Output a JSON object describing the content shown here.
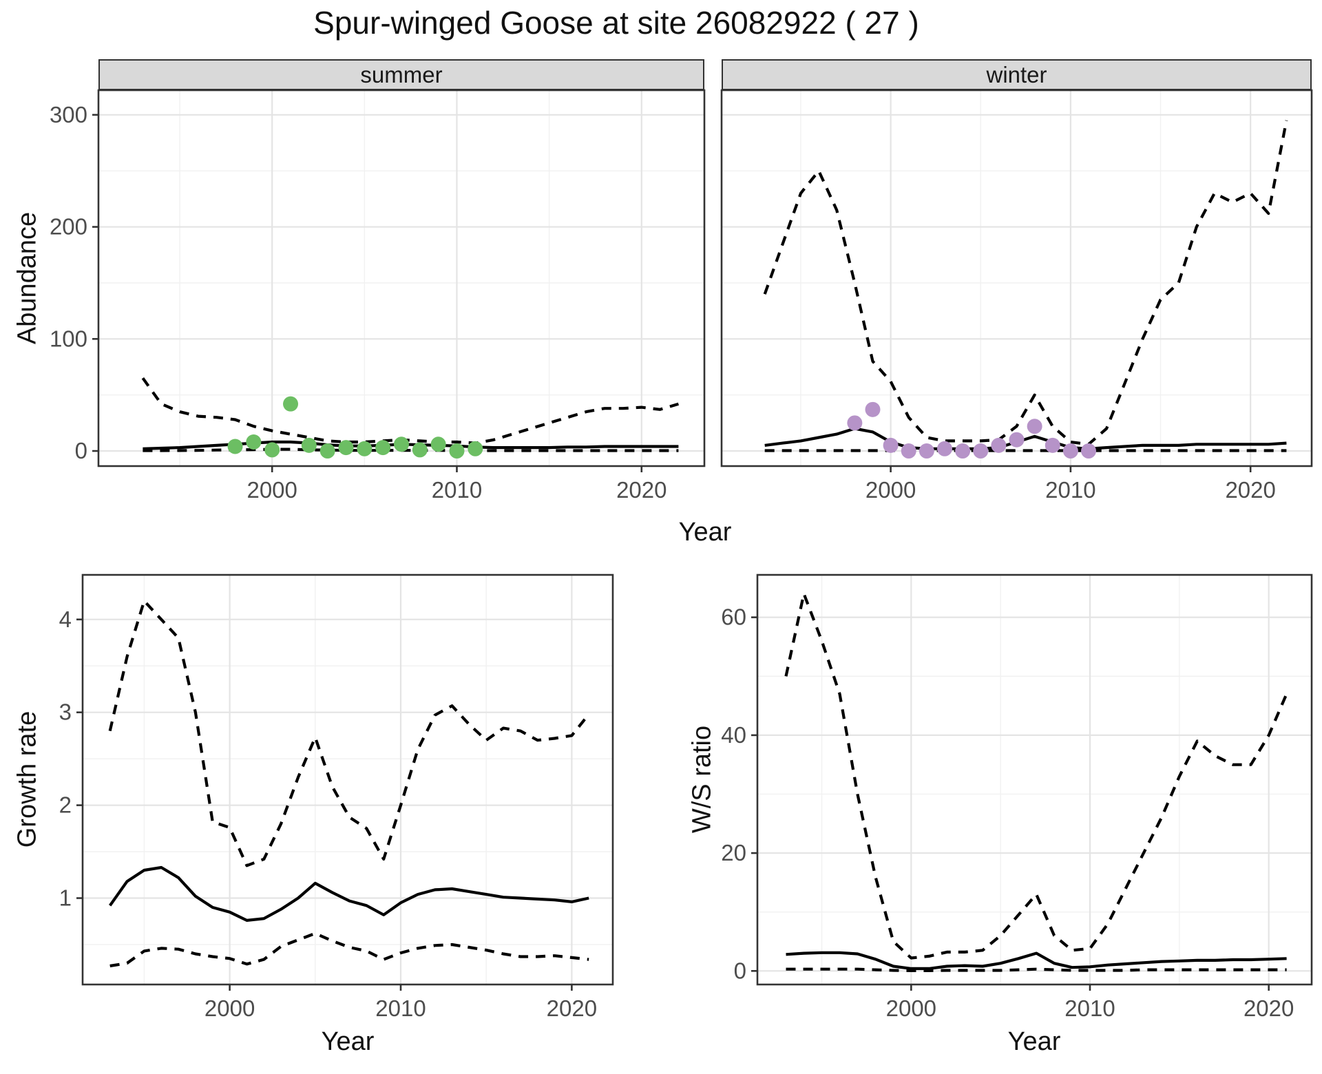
{
  "title": "Spur-winged Goose at site 26082922 ( 27 )",
  "facets": {
    "summer": "summer",
    "winter": "winter"
  },
  "axis_titles": {
    "y_top": "Abundance",
    "x_top": "Year",
    "y_growth": "Growth rate",
    "x_growth": "Year",
    "y_ws": "W/S ratio",
    "x_ws": "Year"
  },
  "colors": {
    "summer_points": "#6cbe63",
    "winter_points": "#b693c8",
    "line": "#000000",
    "grid_major": "#e4e4e4",
    "grid_minor": "#f1f1f1",
    "panel_border": "#333333",
    "strip_bg": "#d9d9d9",
    "tick_text": "#4d4d4d"
  },
  "chart_data": [
    {
      "type": "line",
      "facet": "summer",
      "title": "Abundance - summer",
      "xlabel": "Year",
      "ylabel": "Abundance",
      "x": [
        1993,
        1994,
        1995,
        1996,
        1997,
        1998,
        1999,
        2000,
        2001,
        2002,
        2003,
        2004,
        2005,
        2006,
        2007,
        2008,
        2009,
        2010,
        2011,
        2012,
        2013,
        2014,
        2015,
        2016,
        2017,
        2018,
        2019,
        2020,
        2021,
        2022
      ],
      "series": [
        {
          "name": "upper_ci",
          "style": "dashed",
          "values": [
            65,
            42,
            35,
            31,
            30,
            28,
            22,
            18,
            15,
            12,
            9,
            8,
            8,
            9,
            10,
            9,
            8,
            8,
            7,
            10,
            15,
            20,
            25,
            30,
            35,
            38,
            38,
            39,
            37,
            42
          ]
        },
        {
          "name": "median",
          "style": "solid",
          "values": [
            2,
            2.5,
            3,
            4,
            5,
            6,
            7,
            8,
            8,
            7,
            5.5,
            4.5,
            4.5,
            5,
            6,
            5.5,
            5,
            4.5,
            3.5,
            3,
            3,
            3,
            3,
            3.5,
            3.5,
            4,
            4,
            4,
            4,
            4
          ]
        },
        {
          "name": "lower_ci",
          "style": "dashed",
          "values": [
            0.3,
            0.3,
            0.4,
            0.5,
            0.8,
            1,
            1.2,
            1.5,
            1.5,
            1,
            0.8,
            0.5,
            0.5,
            0.5,
            0.6,
            0.5,
            0.5,
            0.4,
            0.3,
            0.3,
            0.3,
            0.3,
            0.3,
            0.3,
            0.3,
            0.3,
            0.3,
            0.3,
            0.3,
            0.3
          ]
        }
      ],
      "points": {
        "years": [
          1998,
          1999,
          2000,
          2001,
          2002,
          2003,
          2004,
          2005,
          2006,
          2007,
          2008,
          2009,
          2010,
          2011
        ],
        "values": [
          4,
          8,
          1,
          42,
          5,
          0,
          3,
          2,
          3,
          6,
          1,
          6,
          0,
          2
        ],
        "color": "#6cbe63"
      },
      "xticks": [
        2000,
        2010,
        2020
      ],
      "yticks": [
        0,
        100,
        200,
        300
      ],
      "xminor": [
        1995,
        2005,
        2015
      ],
      "yminor": [
        50,
        150,
        250
      ],
      "xlim": [
        1990.6,
        2023.4
      ],
      "ylim": [
        -13.5,
        322
      ],
      "grid": true,
      "legend": "none"
    },
    {
      "type": "line",
      "facet": "winter",
      "title": "Abundance - winter",
      "xlabel": "Year",
      "ylabel": "Abundance",
      "x": [
        1993,
        1994,
        1995,
        1996,
        1997,
        1998,
        1999,
        2000,
        2001,
        2002,
        2003,
        2004,
        2005,
        2006,
        2007,
        2008,
        2009,
        2010,
        2011,
        2012,
        2013,
        2014,
        2015,
        2016,
        2017,
        2018,
        2019,
        2020,
        2021,
        2022
      ],
      "series": [
        {
          "name": "upper_ci",
          "style": "dashed",
          "values": [
            140,
            185,
            230,
            250,
            215,
            150,
            80,
            62,
            30,
            12,
            9,
            9,
            9,
            10,
            22,
            50,
            22,
            8,
            6,
            20,
            60,
            100,
            135,
            150,
            200,
            230,
            222,
            230,
            212,
            295
          ]
        },
        {
          "name": "median",
          "style": "solid",
          "values": [
            5,
            7,
            9,
            12,
            15,
            20,
            17,
            8,
            3,
            2,
            2,
            2,
            2,
            3,
            8,
            13,
            8,
            3,
            2,
            3,
            4,
            5,
            5,
            5,
            6,
            6,
            6,
            6,
            6,
            7
          ]
        },
        {
          "name": "lower_ci",
          "style": "dashed",
          "values": [
            0.3,
            0.3,
            0.3,
            0.3,
            0.3,
            0.3,
            0.3,
            0.3,
            0.3,
            0.3,
            0.3,
            0.3,
            0.3,
            0.3,
            0.3,
            0.3,
            0.3,
            0.3,
            0.3,
            0.3,
            0.3,
            0.3,
            0.3,
            0.3,
            0.3,
            0.3,
            0.3,
            0.3,
            0.3,
            0.3
          ]
        }
      ],
      "points": {
        "years": [
          1998,
          1999,
          2000,
          2001,
          2002,
          2003,
          2004,
          2005,
          2006,
          2007,
          2008,
          2009,
          2010,
          2011
        ],
        "values": [
          25,
          37,
          5,
          0,
          0,
          2,
          0,
          0,
          5,
          10,
          22,
          5,
          0,
          0
        ],
        "color": "#b693c8"
      },
      "xticks": [
        2000,
        2010,
        2020
      ],
      "yticks": [
        0,
        100,
        200,
        300
      ],
      "xminor": [
        1995,
        2005,
        2015
      ],
      "yminor": [
        50,
        150,
        250
      ],
      "xlim": [
        1990.6,
        2023.4
      ],
      "ylim": [
        -13.5,
        322
      ],
      "grid": true,
      "legend": "none"
    },
    {
      "type": "line",
      "facet": null,
      "title": "Growth rate",
      "xlabel": "Year",
      "ylabel": "Growth rate",
      "x": [
        1993,
        1994,
        1995,
        1996,
        1997,
        1998,
        1999,
        2000,
        2001,
        2002,
        2003,
        2004,
        2005,
        2006,
        2007,
        2008,
        2009,
        2010,
        2011,
        2012,
        2013,
        2014,
        2015,
        2016,
        2017,
        2018,
        2019,
        2020,
        2021
      ],
      "series": [
        {
          "name": "upper_ci",
          "style": "dashed",
          "values": [
            2.8,
            3.6,
            4.2,
            4.0,
            3.8,
            3.0,
            1.82,
            1.76,
            1.35,
            1.42,
            1.8,
            2.3,
            2.73,
            2.2,
            1.87,
            1.75,
            1.42,
            2.0,
            2.6,
            2.97,
            3.07,
            2.87,
            2.7,
            2.83,
            2.8,
            2.7,
            2.72,
            2.75,
            2.98
          ]
        },
        {
          "name": "median",
          "style": "solid",
          "values": [
            0.92,
            1.18,
            1.3,
            1.33,
            1.22,
            1.02,
            0.9,
            0.85,
            0.76,
            0.78,
            0.88,
            1.0,
            1.16,
            1.06,
            0.97,
            0.92,
            0.82,
            0.95,
            1.04,
            1.09,
            1.1,
            1.07,
            1.04,
            1.01,
            1.0,
            0.99,
            0.98,
            0.96,
            1.0
          ]
        },
        {
          "name": "lower_ci",
          "style": "dashed",
          "values": [
            0.27,
            0.3,
            0.43,
            0.46,
            0.45,
            0.4,
            0.37,
            0.35,
            0.29,
            0.34,
            0.48,
            0.55,
            0.62,
            0.54,
            0.47,
            0.43,
            0.34,
            0.41,
            0.46,
            0.49,
            0.5,
            0.47,
            0.44,
            0.4,
            0.37,
            0.37,
            0.38,
            0.36,
            0.34
          ]
        }
      ],
      "points": null,
      "xticks": [
        2000,
        2010,
        2020
      ],
      "yticks": [
        1,
        2,
        3,
        4
      ],
      "xminor": [
        1995,
        2005,
        2015
      ],
      "yminor": [
        0.5,
        1.5,
        2.5,
        3.5
      ],
      "xlim": [
        1991.4,
        2022.4
      ],
      "ylim": [
        0.07,
        4.48
      ],
      "grid": true,
      "legend": "none"
    },
    {
      "type": "line",
      "facet": null,
      "title": "W/S ratio",
      "xlabel": "Year",
      "ylabel": "W/S ratio",
      "x": [
        1993,
        1994,
        1995,
        1996,
        1997,
        1998,
        1999,
        2000,
        2001,
        2002,
        2003,
        2004,
        2005,
        2006,
        2007,
        2008,
        2009,
        2010,
        2011,
        2012,
        2013,
        2014,
        2015,
        2016,
        2017,
        2018,
        2019,
        2020,
        2021
      ],
      "series": [
        {
          "name": "upper_ci",
          "style": "dashed",
          "values": [
            50,
            64,
            56,
            47,
            30,
            16,
            5,
            2.2,
            2.5,
            3.2,
            3.2,
            3.5,
            6,
            9.5,
            13,
            6,
            3.5,
            3.8,
            8,
            14,
            20,
            26,
            33,
            39,
            36.5,
            35,
            35,
            40,
            47
          ]
        },
        {
          "name": "median",
          "style": "solid",
          "values": [
            2.8,
            3.0,
            3.1,
            3.1,
            2.9,
            2.0,
            0.8,
            0.4,
            0.4,
            0.8,
            0.9,
            0.8,
            1.3,
            2.1,
            3.0,
            1.3,
            0.6,
            0.7,
            1.0,
            1.2,
            1.4,
            1.6,
            1.7,
            1.8,
            1.8,
            1.9,
            1.9,
            2.0,
            2.1
          ]
        },
        {
          "name": "lower_ci",
          "style": "dashed",
          "values": [
            0.3,
            0.3,
            0.3,
            0.3,
            0.3,
            0.2,
            0.1,
            0.05,
            0.05,
            0.1,
            0.1,
            0.1,
            0.1,
            0.2,
            0.3,
            0.2,
            0.1,
            0.1,
            0.1,
            0.1,
            0.2,
            0.2,
            0.2,
            0.2,
            0.2,
            0.2,
            0.2,
            0.2,
            0.2
          ]
        }
      ],
      "points": null,
      "xticks": [
        2000,
        2010,
        2020
      ],
      "yticks": [
        0,
        20,
        40,
        60
      ],
      "xminor": [
        1995,
        2005,
        2015
      ],
      "yminor": [
        10,
        30,
        50
      ],
      "xlim": [
        1991.4,
        2022.4
      ],
      "ylim": [
        -2.3,
        67.2
      ],
      "grid": true,
      "legend": "none"
    }
  ]
}
